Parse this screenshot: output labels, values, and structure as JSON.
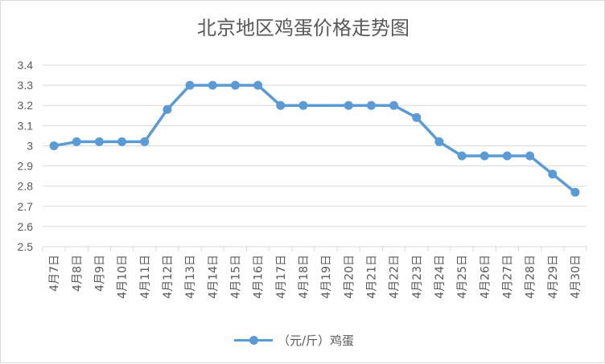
{
  "chart_data": {
    "type": "line",
    "title": "北京地区鸡蛋价格走势图",
    "categories": [
      "4月7日",
      "4月8日",
      "4月9日",
      "4月10日",
      "4月11日",
      "4月12日",
      "4月13日",
      "4月14日",
      "4月15日",
      "4月16日",
      "4月17日",
      "4月18日",
      "4月19日",
      "4月20日",
      "4月21日",
      "4月22日",
      "4月23日",
      "4月24日",
      "4月25日",
      "4月26日",
      "4月27日",
      "4月28日",
      "4月29日",
      "4月30日"
    ],
    "series": [
      {
        "name": "（元/斤）鸡蛋",
        "values": [
          3.0,
          3.02,
          3.02,
          3.02,
          3.02,
          3.18,
          3.3,
          3.3,
          3.3,
          3.3,
          3.2,
          3.2,
          null,
          3.2,
          3.2,
          3.2,
          3.14,
          3.02,
          2.95,
          2.95,
          2.95,
          2.95,
          2.86,
          2.77
        ]
      }
    ],
    "ylim": [
      2.5,
      3.4
    ],
    "yticks": [
      "2.5",
      "2.6",
      "2.7",
      "2.8",
      "2.9",
      "3",
      "3.1",
      "3.2",
      "3.3",
      "3.4"
    ],
    "grid": true,
    "legend_position": "bottom",
    "color": "#5b9bd5"
  }
}
